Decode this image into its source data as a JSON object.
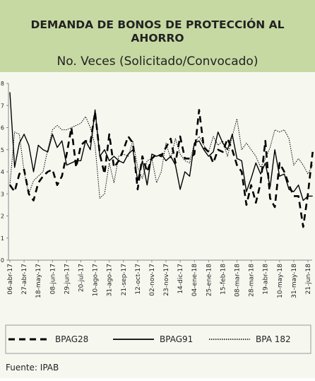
{
  "chart_data": {
    "type": "line",
    "title": "DEMANDA DE BONOS DE PROTECCIÓN AL AHORRO",
    "subtitle": "No. Veces (Solicitado/Convocado)",
    "source": "Fuente: IPAB",
    "categories": [
      "06-abr-17",
      null,
      null,
      "27-abr-17",
      null,
      null,
      "18-may-17",
      null,
      null,
      "08-jun-17",
      null,
      null,
      "29-jun-17",
      null,
      null,
      "20-jul-17",
      null,
      null,
      "10-ago-17",
      null,
      null,
      "31-ago-17",
      null,
      null,
      "21-sep-17",
      null,
      null,
      "12-oct-17",
      null,
      null,
      "02-nov-17",
      null,
      null,
      "23-nov-17",
      null,
      null,
      "14-dic-17",
      null,
      null,
      "04-ene-18",
      null,
      null,
      "25-ene-18",
      null,
      null,
      "15-feb-18",
      null,
      null,
      "08-mar-18",
      null,
      null,
      "28-mar-18",
      null,
      null,
      "19-abr-18",
      null,
      null,
      "10-may-18",
      null,
      null,
      "31-may-18",
      null,
      null,
      "21-jun-18",
      null
    ],
    "series": [
      {
        "name": "BPAG28",
        "color": "#000000",
        "line_style": "dashed",
        "values": [
          3.4,
          3.1,
          3.9,
          4.1,
          3.0,
          2.7,
          3.5,
          3.8,
          4.0,
          4.1,
          3.4,
          3.8,
          4.8,
          6.0,
          4.2,
          5.2,
          5.4,
          5.3,
          6.7,
          4.8,
          3.9,
          5.7,
          4.2,
          4.5,
          5.0,
          5.6,
          5.3,
          3.2,
          4.7,
          4.0,
          4.6,
          4.8,
          4.7,
          5.1,
          5.5,
          4.4,
          5.6,
          4.6,
          4.6,
          4.8,
          6.8,
          5.1,
          4.9,
          4.4,
          5.0,
          4.9,
          5.5,
          5.0,
          4.3,
          4.0,
          2.5,
          3.4,
          2.6,
          3.5,
          5.4,
          2.8,
          2.4,
          4.4,
          4.0,
          3.4,
          2.9,
          2.9,
          1.5,
          3.0,
          4.9
        ]
      },
      {
        "name": "BPAG91",
        "color": "#000000",
        "line_style": "solid",
        "values": [
          7.6,
          4.2,
          5.3,
          5.7,
          5.2,
          4.0,
          5.2,
          5.0,
          4.9,
          5.7,
          5.1,
          5.4,
          4.3,
          4.4,
          4.5,
          4.5,
          5.4,
          5.0,
          6.8,
          4.7,
          5.0,
          4.5,
          4.7,
          4.5,
          4.4,
          4.8,
          5.0,
          3.6,
          4.5,
          3.4,
          4.8,
          4.7,
          4.8,
          4.5,
          4.7,
          4.3,
          3.2,
          4.0,
          3.8,
          5.3,
          5.4,
          5.0,
          4.7,
          4.9,
          5.8,
          5.3,
          5.0,
          5.7,
          4.6,
          4.5,
          3.1,
          3.7,
          4.4,
          3.9,
          4.4,
          3.3,
          5.0,
          3.8,
          3.9,
          3.2,
          3.1,
          3.4,
          2.7,
          2.9,
          2.9
        ]
      },
      {
        "name": "BPA 182",
        "color": "#000000",
        "line_style": "dotted",
        "values": [
          3.4,
          5.8,
          5.7,
          4.0,
          3.0,
          3.6,
          3.8,
          4.0,
          5.0,
          5.9,
          6.1,
          5.9,
          5.9,
          6.0,
          6.1,
          6.2,
          6.5,
          6.0,
          5.2,
          2.8,
          3.0,
          4.4,
          3.5,
          4.7,
          4.8,
          4.7,
          5.4,
          4.2,
          3.7,
          4.5,
          4.6,
          3.5,
          4.0,
          5.3,
          4.6,
          5.5,
          4.8,
          4.5,
          4.4,
          5.3,
          5.6,
          5.2,
          4.9,
          5.6,
          5.2,
          5.4,
          4.7,
          5.6,
          6.4,
          5.0,
          5.3,
          5.0,
          4.7,
          4.2,
          4.6,
          5.1,
          5.9,
          5.8,
          5.9,
          5.5,
          4.3,
          4.6,
          4.3,
          3.9,
          4.3
        ]
      }
    ],
    "ylim": [
      0,
      8
    ],
    "yticks": [
      0,
      1,
      2,
      3,
      4,
      5,
      6,
      7,
      8
    ],
    "legend": "bottom"
  }
}
